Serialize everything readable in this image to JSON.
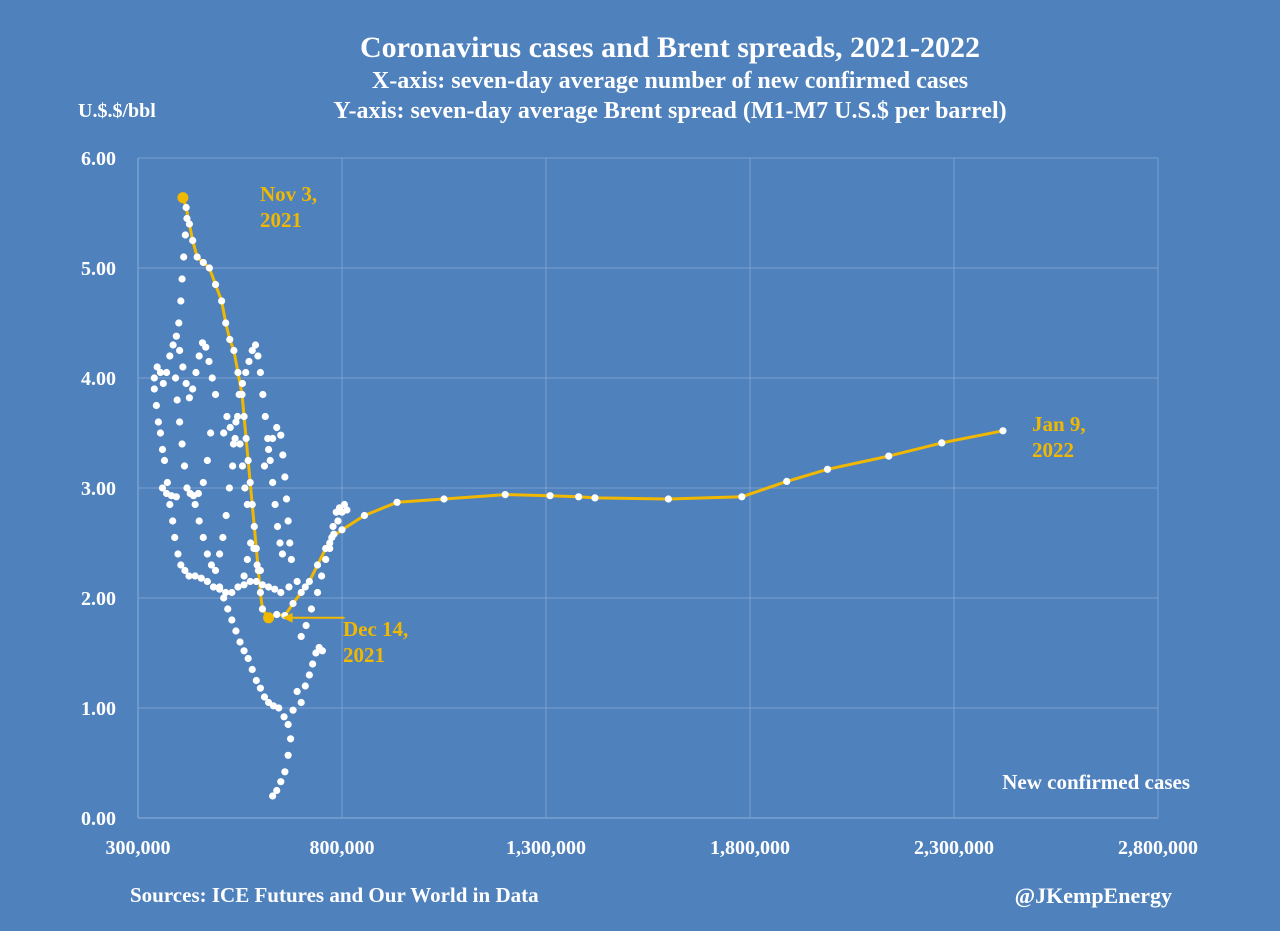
{
  "chart_data": {
    "type": "scatter",
    "title": "Coronavirus cases and Brent spreads, 2021-2022",
    "subtitle_x": "X-axis: seven-day average number of new confirmed cases",
    "subtitle_y": "Y-axis: seven-day average Brent spread (M1-M7 U.S.$ per barrel)",
    "ylabel": "U.$.$/bbl",
    "xlabel": "New confirmed cases",
    "xlim": [
      300000,
      2800000
    ],
    "ylim": [
      0,
      6
    ],
    "x_ticks": [
      "300,000",
      "800,000",
      "1,300,000",
      "1,800,000",
      "2,300,000",
      "2,800,000"
    ],
    "y_ticks": [
      "0.00",
      "1.00",
      "2.00",
      "3.00",
      "4.00",
      "5.00",
      "6.00"
    ],
    "grid": true,
    "colors": {
      "background": "#4f81bd",
      "points": "#ffffff",
      "highlight": "#f0b800",
      "grid": "#7a9fd0"
    },
    "annotations": [
      {
        "text_line1": "Nov 3,",
        "text_line2": "2021",
        "x": 410000,
        "y": 5.64
      },
      {
        "text_line1": "Dec 14,",
        "text_line2": "2021",
        "x": 620000,
        "y": 1.82
      },
      {
        "text_line1": "Jan 9,",
        "text_line2": "2022",
        "x": 2420000,
        "y": 3.52
      }
    ],
    "series": [
      {
        "points": [
          [
            410000,
            5.64
          ],
          [
            418000,
            5.55
          ],
          [
            426000,
            5.4
          ],
          [
            434000,
            5.25
          ],
          [
            445000,
            5.1
          ],
          [
            460000,
            5.05
          ],
          [
            475000,
            5.0
          ],
          [
            490000,
            4.85
          ],
          [
            505000,
            4.7
          ],
          [
            515000,
            4.5
          ],
          [
            525000,
            4.35
          ],
          [
            535000,
            4.25
          ],
          [
            545000,
            4.05
          ],
          [
            555000,
            3.85
          ],
          [
            560000,
            3.65
          ],
          [
            565000,
            3.45
          ],
          [
            570000,
            3.25
          ],
          [
            575000,
            3.05
          ],
          [
            580000,
            2.85
          ],
          [
            585000,
            2.65
          ],
          [
            590000,
            2.45
          ],
          [
            595000,
            2.25
          ],
          [
            600000,
            2.05
          ],
          [
            605000,
            1.9
          ],
          [
            620000,
            1.82
          ],
          [
            640000,
            1.85
          ],
          [
            660000,
            1.84
          ],
          [
            680000,
            1.95
          ],
          [
            700000,
            2.05
          ],
          [
            720000,
            2.15
          ],
          [
            740000,
            2.3
          ],
          [
            760000,
            2.45
          ],
          [
            775000,
            2.55
          ],
          [
            800000,
            2.62
          ],
          [
            855000,
            2.75
          ],
          [
            935000,
            2.87
          ],
          [
            1050000,
            2.9
          ],
          [
            1200000,
            2.94
          ],
          [
            1310000,
            2.93
          ],
          [
            1380000,
            2.92
          ],
          [
            1420000,
            2.91
          ],
          [
            1600000,
            2.9
          ],
          [
            1780000,
            2.92
          ],
          [
            1890000,
            3.06
          ],
          [
            1990000,
            3.17
          ],
          [
            2140000,
            3.29
          ],
          [
            2270000,
            3.41
          ],
          [
            2420000,
            3.52
          ]
        ]
      },
      {
        "points": [
          [
            340000,
            3.9
          ],
          [
            345000,
            3.75
          ],
          [
            350000,
            3.6
          ],
          [
            355000,
            3.5
          ],
          [
            360000,
            3.35
          ],
          [
            365000,
            3.25
          ],
          [
            372000,
            3.05
          ],
          [
            378000,
            2.85
          ],
          [
            385000,
            2.7
          ],
          [
            390000,
            2.55
          ],
          [
            398000,
            2.4
          ],
          [
            405000,
            2.3
          ],
          [
            415000,
            2.25
          ],
          [
            425000,
            2.2
          ],
          [
            440000,
            2.2
          ],
          [
            455000,
            2.18
          ],
          [
            470000,
            2.15
          ],
          [
            485000,
            2.1
          ],
          [
            500000,
            2.08
          ],
          [
            515000,
            2.05
          ],
          [
            530000,
            2.05
          ],
          [
            545000,
            2.1
          ],
          [
            560000,
            2.12
          ],
          [
            575000,
            2.15
          ],
          [
            590000,
            2.15
          ],
          [
            605000,
            2.12
          ],
          [
            620000,
            2.1
          ],
          [
            635000,
            2.08
          ],
          [
            650000,
            2.05
          ],
          [
            670000,
            2.1
          ],
          [
            690000,
            2.15
          ],
          [
            710000,
            2.1
          ],
          [
            340000,
            4.0
          ],
          [
            347000,
            4.1
          ],
          [
            355000,
            4.05
          ],
          [
            362000,
            3.95
          ],
          [
            370000,
            4.05
          ],
          [
            378000,
            4.2
          ],
          [
            386000,
            4.3
          ],
          [
            394000,
            4.38
          ],
          [
            402000,
            4.25
          ],
          [
            410000,
            4.1
          ],
          [
            418000,
            3.95
          ],
          [
            426000,
            3.82
          ],
          [
            434000,
            3.9
          ],
          [
            442000,
            4.05
          ],
          [
            450000,
            4.2
          ],
          [
            458000,
            4.32
          ],
          [
            466000,
            4.28
          ],
          [
            474000,
            4.15
          ],
          [
            482000,
            4.0
          ],
          [
            490000,
            3.85
          ],
          [
            400000,
            4.5
          ],
          [
            405000,
            4.7
          ],
          [
            408000,
            4.9
          ],
          [
            412000,
            5.1
          ],
          [
            416000,
            5.3
          ],
          [
            420000,
            5.45
          ],
          [
            392000,
            4.0
          ],
          [
            396000,
            3.8
          ],
          [
            402000,
            3.6
          ],
          [
            408000,
            3.4
          ],
          [
            414000,
            3.2
          ],
          [
            420000,
            3.0
          ],
          [
            428000,
            2.95
          ],
          [
            436000,
            2.93
          ],
          [
            448000,
            2.95
          ],
          [
            460000,
            3.05
          ],
          [
            470000,
            3.25
          ],
          [
            478000,
            3.5
          ],
          [
            360000,
            3.0
          ],
          [
            370000,
            2.95
          ],
          [
            382000,
            2.93
          ],
          [
            394000,
            2.92
          ],
          [
            440000,
            2.85
          ],
          [
            450000,
            2.7
          ],
          [
            460000,
            2.55
          ],
          [
            470000,
            2.4
          ],
          [
            480000,
            2.3
          ],
          [
            490000,
            2.25
          ],
          [
            500000,
            2.4
          ],
          [
            508000,
            2.55
          ],
          [
            516000,
            2.75
          ],
          [
            524000,
            3.0
          ],
          [
            532000,
            3.2
          ],
          [
            538000,
            3.45
          ],
          [
            544000,
            3.65
          ],
          [
            550000,
            3.4
          ],
          [
            556000,
            3.2
          ],
          [
            562000,
            3.0
          ],
          [
            568000,
            2.85
          ],
          [
            510000,
            3.5
          ],
          [
            518000,
            3.65
          ],
          [
            526000,
            3.55
          ],
          [
            534000,
            3.4
          ],
          [
            540000,
            3.6
          ],
          [
            548000,
            3.85
          ],
          [
            556000,
            3.95
          ],
          [
            564000,
            4.05
          ],
          [
            572000,
            4.15
          ],
          [
            580000,
            4.25
          ],
          [
            588000,
            4.3
          ],
          [
            594000,
            4.2
          ],
          [
            600000,
            4.05
          ],
          [
            606000,
            3.85
          ],
          [
            612000,
            3.65
          ],
          [
            618000,
            3.45
          ],
          [
            624000,
            3.25
          ],
          [
            630000,
            3.05
          ],
          [
            636000,
            2.85
          ],
          [
            642000,
            2.65
          ],
          [
            648000,
            2.5
          ],
          [
            654000,
            2.4
          ],
          [
            610000,
            3.2
          ],
          [
            620000,
            3.35
          ],
          [
            630000,
            3.45
          ],
          [
            640000,
            3.55
          ],
          [
            650000,
            3.48
          ],
          [
            655000,
            3.3
          ],
          [
            660000,
            3.1
          ],
          [
            664000,
            2.9
          ],
          [
            668000,
            2.7
          ],
          [
            672000,
            2.5
          ],
          [
            676000,
            2.35
          ],
          [
            560000,
            2.2
          ],
          [
            568000,
            2.35
          ],
          [
            576000,
            2.5
          ],
          [
            584000,
            2.45
          ],
          [
            592000,
            2.3
          ],
          [
            600000,
            2.25
          ],
          [
            500000,
            2.1
          ],
          [
            510000,
            2.0
          ],
          [
            520000,
            1.9
          ],
          [
            530000,
            1.8
          ],
          [
            540000,
            1.7
          ],
          [
            550000,
            1.6
          ],
          [
            560000,
            1.52
          ],
          [
            570000,
            1.45
          ],
          [
            580000,
            1.35
          ],
          [
            590000,
            1.25
          ],
          [
            600000,
            1.18
          ],
          [
            610000,
            1.1
          ],
          [
            620000,
            1.05
          ],
          [
            632000,
            1.02
          ],
          [
            645000,
            1.0
          ],
          [
            658000,
            0.92
          ],
          [
            668000,
            0.85
          ],
          [
            700000,
            1.05
          ],
          [
            710000,
            1.2
          ],
          [
            720000,
            1.3
          ],
          [
            728000,
            1.4
          ],
          [
            736000,
            1.5
          ],
          [
            744000,
            1.55
          ],
          [
            752000,
            1.52
          ],
          [
            690000,
            1.15
          ],
          [
            680000,
            0.98
          ],
          [
            640000,
            0.25
          ],
          [
            630000,
            0.2
          ],
          [
            650000,
            0.33
          ],
          [
            660000,
            0.42
          ],
          [
            668000,
            0.57
          ],
          [
            674000,
            0.72
          ],
          [
            700000,
            1.65
          ],
          [
            712000,
            1.75
          ],
          [
            725000,
            1.9
          ],
          [
            740000,
            2.05
          ],
          [
            750000,
            2.2
          ],
          [
            760000,
            2.35
          ],
          [
            770000,
            2.5
          ],
          [
            778000,
            2.65
          ],
          [
            786000,
            2.78
          ],
          [
            794000,
            2.82
          ],
          [
            800000,
            2.78
          ],
          [
            806000,
            2.85
          ],
          [
            812000,
            2.8
          ],
          [
            790000,
            2.7
          ],
          [
            780000,
            2.58
          ],
          [
            770000,
            2.45
          ]
        ]
      }
    ]
  },
  "footer": {
    "source": "Sources: ICE Futures and Our World in Data",
    "credit": "@JKempEnergy"
  }
}
